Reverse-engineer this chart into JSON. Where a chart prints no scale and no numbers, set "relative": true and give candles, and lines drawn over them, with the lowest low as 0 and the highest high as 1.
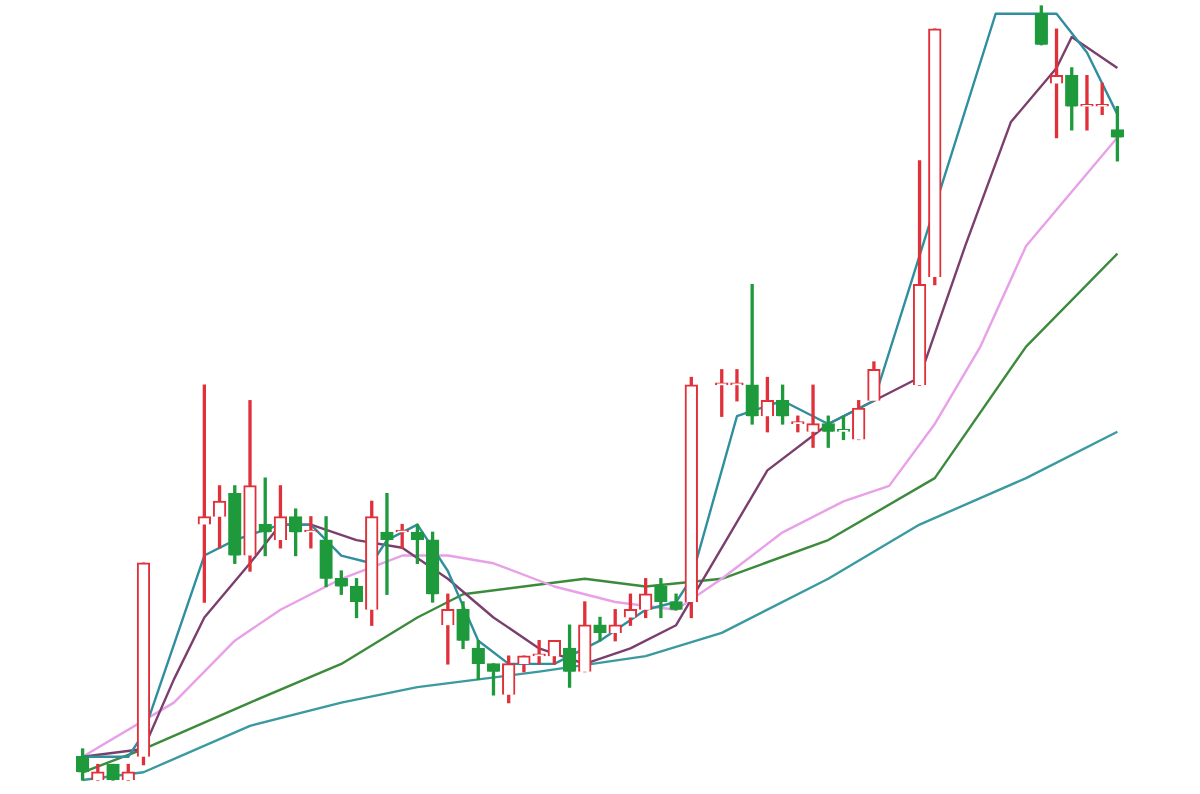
{
  "chart_data": {
    "type": "candlestick",
    "relative": true,
    "categories": [
      null,
      null,
      null,
      null,
      null,
      null,
      null,
      null,
      null,
      null,
      null,
      null,
      null,
      null,
      null,
      null,
      null,
      null,
      null,
      null,
      null,
      null,
      null,
      null,
      null,
      null,
      null,
      null,
      null,
      null,
      null,
      null,
      null,
      null,
      null,
      null,
      null,
      null,
      null,
      null,
      null,
      null,
      null,
      null,
      null,
      null,
      null,
      null,
      null,
      null,
      null,
      null,
      null,
      null,
      null,
      null,
      null,
      null,
      null,
      null,
      null,
      null,
      null,
      null,
      null,
      null,
      null,
      null,
      null
    ],
    "ohlc": [
      [
        0.03,
        0.04,
        0,
        0.01
      ],
      [
        0,
        0.02,
        0,
        0.01
      ],
      [
        0.02,
        0.02,
        0,
        0
      ],
      [
        0,
        0.02,
        0,
        0.01
      ],
      [
        0.03,
        0.28,
        0.02,
        0.28
      ],
      null,
      null,
      null,
      [
        0.33,
        0.51,
        0.23,
        0.34
      ],
      [
        0.34,
        0.38,
        0.3,
        0.36
      ],
      [
        0.37,
        0.38,
        0.28,
        0.29
      ],
      [
        0.29,
        0.49,
        0.27,
        0.38
      ],
      [
        0.33,
        0.39,
        0.29,
        0.32
      ],
      [
        0.31,
        0.38,
        0.3,
        0.34
      ],
      [
        0.34,
        0.35,
        0.29,
        0.32
      ],
      [
        0.32,
        0.34,
        0.3,
        0.32
      ],
      [
        0.31,
        0.34,
        0.25,
        0.26
      ],
      [
        0.26,
        0.27,
        0.24,
        0.25
      ],
      [
        0.25,
        0.26,
        0.21,
        0.23
      ],
      [
        0.22,
        0.36,
        0.2,
        0.34
      ],
      [
        0.32,
        0.37,
        0.24,
        0.31
      ],
      [
        0.32,
        0.33,
        0.3,
        0.32
      ],
      [
        0.32,
        0.33,
        0.28,
        0.31
      ],
      [
        0.31,
        0.32,
        0.23,
        0.24
      ],
      [
        0.2,
        0.24,
        0.15,
        0.22
      ],
      [
        0.22,
        0.23,
        0.17,
        0.18
      ],
      [
        0.17,
        0.18,
        0.13,
        0.15
      ],
      [
        0.15,
        0.15,
        0.11,
        0.14
      ],
      [
        0.11,
        0.16,
        0.1,
        0.15
      ],
      [
        0.15,
        0.16,
        0.14,
        0.16
      ],
      [
        0.16,
        0.18,
        0.15,
        0.16
      ],
      [
        0.16,
        0.18,
        0.15,
        0.18
      ],
      [
        0.17,
        0.2,
        0.12,
        0.14
      ],
      [
        0.14,
        0.23,
        0.14,
        0.2
      ],
      [
        0.2,
        0.21,
        0.18,
        0.19
      ],
      [
        0.19,
        0.22,
        0.18,
        0.2
      ],
      [
        0.21,
        0.24,
        0.2,
        0.22
      ],
      [
        0.22,
        0.26,
        0.21,
        0.24
      ],
      [
        0.25,
        0.26,
        0.21,
        0.23
      ],
      [
        0.23,
        0.24,
        0.22,
        0.22
      ],
      [
        0.23,
        0.52,
        0.21,
        0.51
      ],
      null,
      [
        0.51,
        0.53,
        0.47,
        0.51
      ],
      [
        0.51,
        0.53,
        0.49,
        0.51
      ],
      [
        0.51,
        0.64,
        0.46,
        0.47
      ],
      [
        0.47,
        0.52,
        0.45,
        0.49
      ],
      [
        0.49,
        0.51,
        0.46,
        0.47
      ],
      [
        0.46,
        0.47,
        0.45,
        0.46
      ],
      [
        0.45,
        0.51,
        0.43,
        0.46
      ],
      [
        0.46,
        0.47,
        0.43,
        0.45
      ],
      [
        0.45,
        0.47,
        0.44,
        0.45
      ],
      [
        0.44,
        0.49,
        0.44,
        0.48
      ],
      [
        0.49,
        0.54,
        0.49,
        0.53
      ],
      null,
      null,
      [
        0.51,
        0.8,
        0.51,
        0.64
      ],
      [
        0.65,
        0.97,
        0.64,
        0.97
      ],
      null,
      null,
      null,
      null,
      null,
      null,
      [
        0.99,
        1,
        0.95,
        0.95
      ],
      [
        0.9,
        0.97,
        0.83,
        0.91
      ],
      [
        0.91,
        0.92,
        0.84,
        0.87
      ],
      [
        0.87,
        0.91,
        0.84,
        0.87
      ],
      [
        0.87,
        0.9,
        0.86,
        0.87
      ],
      [
        0.84,
        0.87,
        0.8,
        0.83
      ]
    ],
    "colors": [
      "#1e9a3c",
      "#e0303a",
      "#1e9a3c",
      "#e0303a",
      "#e0303a",
      null,
      null,
      null,
      "#e0303a",
      "#e0303a",
      "#1e9a3c",
      "#e0303a",
      "#1e9a3c",
      "#e0303a",
      "#1e9a3c",
      "#e0303a",
      "#1e9a3c",
      "#1e9a3c",
      "#1e9a3c",
      "#e0303a",
      "#1e9a3c",
      "#e0303a",
      "#1e9a3c",
      "#1e9a3c",
      "#e0303a",
      "#1e9a3c",
      "#1e9a3c",
      "#1e9a3c",
      "#e0303a",
      "#e0303a",
      "#e0303a",
      "#e0303a",
      "#1e9a3c",
      "#e0303a",
      "#1e9a3c",
      "#e0303a",
      "#e0303a",
      "#e0303a",
      "#1e9a3c",
      "#1e9a3c",
      "#e0303a",
      null,
      "#e0303a",
      "#e0303a",
      "#1e9a3c",
      "#e0303a",
      "#1e9a3c",
      "#e0303a",
      "#e0303a",
      "#1e9a3c",
      "#1e9a3c",
      "#e0303a",
      "#e0303a",
      null,
      null,
      "#e0303a",
      "#e0303a",
      null,
      null,
      null,
      null,
      null,
      null,
      "#1e9a3c",
      "#e0303a",
      "#1e9a3c",
      "#e0303a",
      "#e0303a",
      "#1e9a3c"
    ],
    "series": [
      {
        "type": "line",
        "color": "#2f8f9f",
        "values": [
          0.03,
          null,
          null,
          0.03,
          0.06,
          null,
          null,
          null,
          0.29,
          null,
          0.31,
          null,
          null,
          0.33,
          null,
          0.33,
          null,
          0.29,
          null,
          0.28,
          0.31,
          null,
          0.33,
          null,
          0.27,
          null,
          0.18,
          null,
          0.15,
          null,
          null,
          0.15,
          null,
          null,
          0.18,
          null,
          null,
          0.22,
          null,
          0.23,
          0.26,
          null,
          null,
          0.47,
          null,
          null,
          0.49,
          null,
          null,
          0.46,
          null,
          null,
          0.49,
          null,
          null,
          null,
          null,
          null,
          null,
          null,
          0.99,
          null,
          null,
          null,
          0.99,
          null,
          0.94,
          null,
          0.86
        ]
      },
      {
        "type": "line",
        "color": "#7b3f6e",
        "values": [
          0.03,
          null,
          null,
          null,
          0.04,
          null,
          0.13,
          null,
          0.21,
          null,
          null,
          0.28,
          null,
          0.33,
          null,
          0.33,
          null,
          null,
          0.31,
          null,
          null,
          0.3,
          null,
          null,
          0.26,
          null,
          null,
          0.21,
          null,
          null,
          0.17,
          null,
          null,
          0.15,
          null,
          null,
          0.17,
          null,
          null,
          0.2,
          null,
          null,
          0.3,
          null,
          null,
          0.4,
          null,
          null,
          null,
          0.46,
          null,
          null,
          0.49,
          null,
          null,
          0.52,
          null,
          null,
          0.69,
          null,
          null,
          0.85,
          null,
          null,
          0.92,
          0.96,
          null,
          null,
          0.92
        ]
      },
      {
        "type": "line",
        "color": "#e8a0e8",
        "values": [
          0.03,
          null,
          null,
          null,
          null,
          null,
          0.1,
          null,
          null,
          null,
          0.18,
          null,
          null,
          0.22,
          null,
          null,
          null,
          0.26,
          null,
          null,
          null,
          0.29,
          null,
          null,
          0.29,
          null,
          null,
          0.28,
          null,
          null,
          null,
          0.25,
          null,
          null,
          null,
          0.23,
          null,
          null,
          null,
          0.22,
          null,
          null,
          0.26,
          null,
          null,
          null,
          0.32,
          null,
          null,
          null,
          0.36,
          null,
          null,
          0.38,
          null,
          null,
          0.46,
          null,
          null,
          0.56,
          null,
          null,
          0.69,
          null,
          null,
          0.76,
          null,
          null,
          0.83
        ]
      },
      {
        "type": "line",
        "color": "#3c8a3c",
        "values": [
          0.01,
          null,
          null,
          null,
          0.04,
          null,
          null,
          null,
          null,
          null,
          null,
          0.1,
          null,
          null,
          null,
          null,
          null,
          0.15,
          null,
          null,
          null,
          null,
          0.21,
          null,
          null,
          0.24,
          null,
          null,
          null,
          null,
          null,
          null,
          null,
          0.26,
          null,
          null,
          null,
          0.25,
          null,
          null,
          null,
          null,
          0.26,
          null,
          null,
          null,
          null,
          null,
          null,
          0.31,
          null,
          null,
          null,
          null,
          null,
          null,
          0.39,
          null,
          null,
          null,
          null,
          null,
          0.56,
          null,
          null,
          null,
          null,
          null,
          0.68
        ]
      },
      {
        "type": "line",
        "color": "#3a9aa0",
        "values": [
          0,
          null,
          null,
          null,
          0.01,
          null,
          null,
          null,
          null,
          null,
          null,
          0.07,
          null,
          null,
          null,
          null,
          null,
          0.1,
          null,
          null,
          null,
          null,
          0.12,
          null,
          null,
          null,
          null,
          null,
          null,
          null,
          0.14,
          null,
          null,
          null,
          null,
          null,
          null,
          0.16,
          null,
          null,
          null,
          null,
          0.19,
          null,
          null,
          null,
          null,
          null,
          null,
          0.26,
          null,
          null,
          null,
          null,
          null,
          0.33,
          null,
          null,
          null,
          null,
          null,
          null,
          0.39,
          null,
          null,
          null,
          null,
          null,
          0.45
        ]
      }
    ]
  }
}
